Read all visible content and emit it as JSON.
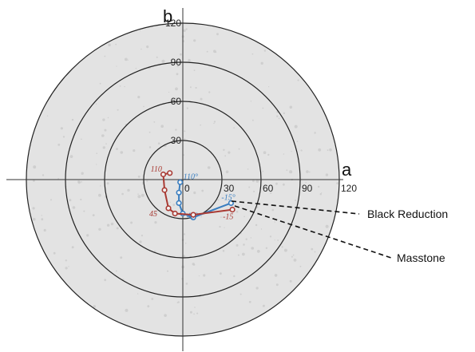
{
  "chart_data": {
    "type": "scatter",
    "title": "",
    "x_axis_label": "a",
    "y_axis_label": "b",
    "ring_values": [
      30,
      60,
      90,
      120
    ],
    "x_tick_labels": [
      "0",
      "30",
      "60",
      "90",
      "120"
    ],
    "y_tick_labels": [
      "30",
      "60",
      "90",
      "120"
    ],
    "xlim": [
      -135,
      135
    ],
    "ylim": [
      -135,
      135
    ],
    "grid": true,
    "series": [
      {
        "name": "Black Reduction",
        "color": "#3a7ec0",
        "points": [
          {
            "a": -2,
            "b": -2
          },
          {
            "a": -3,
            "b": -10
          },
          {
            "a": -3,
            "b": -18
          },
          {
            "a": 0,
            "b": -26
          },
          {
            "a": 8,
            "b": -29
          },
          {
            "a": 37,
            "b": -18
          }
        ],
        "start_angle_label": "110°",
        "end_angle_label": "-15°",
        "mid_angle_label": "45°"
      },
      {
        "name": "Masstone",
        "color": "#a93a33",
        "points": [
          {
            "a": -10,
            "b": 5
          },
          {
            "a": -15,
            "b": 4
          },
          {
            "a": -14,
            "b": -8
          },
          {
            "a": -11,
            "b": -22
          },
          {
            "a": -6,
            "b": -26
          },
          {
            "a": 8,
            "b": -27
          },
          {
            "a": 38,
            "b": -23
          }
        ],
        "start_angle_label": "110",
        "end_angle_label": "-15",
        "mid_angle_label": "45"
      }
    ],
    "callouts": [
      "Black Reduction",
      "Masstone"
    ]
  }
}
